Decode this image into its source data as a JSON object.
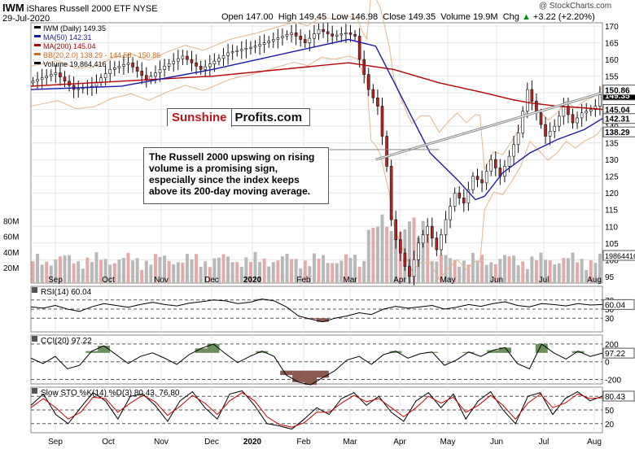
{
  "header": {
    "symbol": "IWM",
    "name": "iShares Russell 2000 ETF",
    "exchange": "NYSE",
    "date": "29-Jul-2020",
    "open_label": "Open",
    "open": "147.00",
    "high_label": "High",
    "high": "149.45",
    "low_label": "Low",
    "low": "146.98",
    "close_label": "Close",
    "close": "149.35",
    "volume_label": "Volume",
    "volume": "19.9M",
    "chg_label": "Chg",
    "chg": "+3.22 (+2.20%)",
    "chg_arrow": "▲",
    "copyright": "@ StockCharts.com"
  },
  "legend": [
    {
      "text": "IWM (Daily) 149.35",
      "color": "#000000"
    },
    {
      "text": "MA(50) 142.31",
      "color": "#1a1aa8"
    },
    {
      "text": "MA(200) 145.04",
      "color": "#b30000"
    },
    {
      "text": "BB(20,2.0) 138.29 - 144.58 - 150.86",
      "color": "#d2691e"
    },
    {
      "text": "Volume 19,864,416",
      "color": "#000000"
    }
  ],
  "logo": {
    "part1": "Sunshine",
    "part2": "Profits.com"
  },
  "annotation": "The Russell 2000 upswing on rising volume is a promising sign, especially since the index keeps above its 200-day moving average.",
  "chart_data": [
    {
      "type": "candlestick",
      "ylim": [
        93,
        171
      ],
      "y_ticks": [
        95,
        100,
        105,
        110,
        115,
        120,
        125,
        130,
        135,
        140,
        145,
        150,
        155,
        160,
        165,
        170
      ],
      "x_labels": [
        "Sep",
        "Oct",
        "Nov",
        "Dec",
        "2020",
        "Feb",
        "Mar",
        "Apr",
        "May",
        "Jun",
        "Jul",
        "Aug"
      ],
      "price_path": [
        [
          0,
          153
        ],
        [
          6,
          156
        ],
        [
          10,
          151
        ],
        [
          14,
          152
        ],
        [
          18,
          157
        ],
        [
          22,
          159
        ],
        [
          26,
          154
        ],
        [
          30,
          158
        ],
        [
          34,
          161
        ],
        [
          38,
          157
        ],
        [
          44,
          162
        ],
        [
          50,
          164
        ],
        [
          54,
          166
        ],
        [
          58,
          168
        ],
        [
          61,
          165
        ],
        [
          64,
          169
        ],
        [
          67,
          167
        ],
        [
          70,
          168
        ],
        [
          72,
          167
        ],
        [
          73,
          160
        ],
        [
          75,
          151
        ],
        [
          77,
          146
        ],
        [
          79,
          128
        ],
        [
          80,
          112
        ],
        [
          81,
          106
        ],
        [
          83,
          98
        ],
        [
          84,
          95
        ],
        [
          86,
          105
        ],
        [
          88,
          110
        ],
        [
          90,
          103
        ],
        [
          92,
          112
        ],
        [
          94,
          120
        ],
        [
          96,
          117
        ],
        [
          98,
          125
        ],
        [
          100,
          123
        ],
        [
          102,
          130
        ],
        [
          104,
          125
        ],
        [
          106,
          131
        ],
        [
          108,
          138
        ],
        [
          110,
          151
        ],
        [
          112,
          144
        ],
        [
          114,
          137
        ],
        [
          116,
          140
        ],
        [
          118,
          146
        ],
        [
          120,
          141
        ],
        [
          122,
          144
        ],
        [
          124,
          145
        ],
        [
          125,
          146
        ],
        [
          126,
          149.35
        ]
      ],
      "ma50_path": [
        [
          0,
          151
        ],
        [
          20,
          152
        ],
        [
          40,
          157
        ],
        [
          60,
          163
        ],
        [
          70,
          166
        ],
        [
          76,
          164
        ],
        [
          82,
          148
        ],
        [
          88,
          132
        ],
        [
          94,
          124
        ],
        [
          98,
          118
        ],
        [
          100,
          119
        ],
        [
          104,
          126
        ],
        [
          110,
          132
        ],
        [
          116,
          136
        ],
        [
          122,
          139
        ],
        [
          126,
          142.31
        ]
      ],
      "ma200_path": [
        [
          0,
          152
        ],
        [
          40,
          155
        ],
        [
          70,
          159
        ],
        [
          80,
          157
        ],
        [
          90,
          153
        ],
        [
          100,
          150
        ],
        [
          106,
          148
        ],
        [
          110,
          147
        ],
        [
          116,
          146
        ],
        [
          122,
          145.5
        ],
        [
          126,
          145.04
        ]
      ],
      "trendline": [
        [
          76,
          130
        ],
        [
          126,
          150
        ]
      ],
      "price_labels": [
        {
          "text": "149.35",
          "value": 149.35,
          "bg": "#000000",
          "fg": "#ffffff"
        },
        {
          "text": "150.86",
          "value": 150.86,
          "bg": "#ffffff",
          "fg": "#000000"
        },
        {
          "text": "145.04",
          "value": 145.04,
          "bg": "#ffffff",
          "fg": "#000000"
        },
        {
          "text": "142.31",
          "value": 142.31,
          "bg": "#ffffff",
          "fg": "#000000"
        },
        {
          "text": "138.29",
          "value": 138.29,
          "bg": "#ffffff",
          "fg": "#000000"
        }
      ],
      "volume_labels": [
        "80M",
        "60M",
        "40M",
        "20M"
      ],
      "volume_last": "19864416"
    },
    {
      "type": "line",
      "title": "RSI(14) 60.04",
      "ylim": [
        0,
        100
      ],
      "y_ticks": [
        70,
        50,
        30
      ],
      "current": "60.04",
      "values": [
        55,
        52,
        58,
        50,
        45,
        55,
        62,
        58,
        54,
        60,
        65,
        60,
        57,
        63,
        66,
        70,
        68,
        62,
        65,
        72,
        68,
        55,
        35,
        28,
        22,
        30,
        35,
        42,
        38,
        50,
        56,
        52,
        55,
        58,
        50,
        54,
        60,
        56,
        62,
        66,
        58,
        55,
        62,
        60,
        57,
        62,
        59,
        60.04
      ]
    },
    {
      "type": "line",
      "title": "CCI(20) 97.22",
      "ylim": [
        -250,
        300
      ],
      "y_ticks": [
        200,
        0,
        -200
      ],
      "current": "97.22",
      "values": [
        40,
        -20,
        60,
        -80,
        -40,
        120,
        180,
        80,
        -20,
        60,
        100,
        40,
        -30,
        80,
        150,
        200,
        90,
        -10,
        60,
        120,
        60,
        -150,
        -230,
        -260,
        -180,
        -100,
        20,
        60,
        -30,
        80,
        120,
        40,
        90,
        110,
        -40,
        20,
        110,
        60,
        130,
        160,
        -20,
        -80,
        200,
        100,
        30,
        120,
        60,
        97.22
      ]
    },
    {
      "type": "line",
      "title": "Slow STO %K(14) %D(3) 80.43, 76.80",
      "ylim": [
        0,
        100
      ],
      "y_ticks": [
        80,
        50,
        20
      ],
      "series": [
        {
          "name": "%K(14)",
          "current": "80.43",
          "color": "#000000",
          "values": [
            60,
            85,
            40,
            20,
            55,
            88,
            70,
            30,
            80,
            85,
            60,
            25,
            70,
            90,
            55,
            30,
            85,
            92,
            60,
            20,
            15,
            8,
            30,
            55,
            40,
            75,
            88,
            60,
            80,
            45,
            25,
            70,
            88,
            55,
            85,
            30,
            70,
            90,
            50,
            20,
            80,
            88,
            40,
            75,
            90,
            70,
            80.43
          ]
        },
        {
          "name": "%D(3)",
          "current": "76.80",
          "color": "#cc0000",
          "values": [
            55,
            75,
            55,
            30,
            45,
            78,
            75,
            45,
            65,
            82,
            68,
            38,
            58,
            82,
            65,
            40,
            70,
            88,
            70,
            35,
            18,
            12,
            22,
            45,
            45,
            65,
            82,
            68,
            75,
            55,
            35,
            55,
            80,
            65,
            78,
            45,
            60,
            82,
            60,
            30,
            65,
            85,
            55,
            65,
            85,
            75,
            76.8
          ]
        }
      ]
    }
  ]
}
